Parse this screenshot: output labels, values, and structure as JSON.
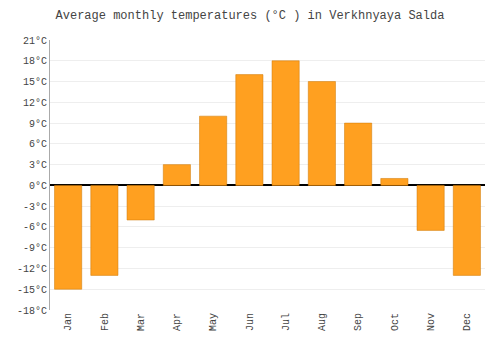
{
  "chart_data": {
    "type": "bar",
    "title": "Average monthly temperatures (°C ) in Verkhnyaya Salda",
    "categories": [
      "Jan",
      "Feb",
      "Mar",
      "Apr",
      "May",
      "Jun",
      "Jul",
      "Aug",
      "Sep",
      "Oct",
      "Nov",
      "Dec"
    ],
    "values": [
      -15,
      -13,
      -5,
      3,
      10,
      16,
      18,
      15,
      9,
      1,
      -6.5,
      -13
    ],
    "color": "#FFA020",
    "ylim": [
      -18,
      21
    ],
    "yticks": [
      {
        "value": -18,
        "label": "-18°C"
      },
      {
        "value": -15,
        "label": "-15°C"
      },
      {
        "value": -12,
        "label": "-12°C"
      },
      {
        "value": -9,
        "label": "-9°C"
      },
      {
        "value": -6,
        "label": "-6°C"
      },
      {
        "value": -3,
        "label": "-3°C"
      },
      {
        "value": 0,
        "label": "0°C"
      },
      {
        "value": 3,
        "label": "3°C"
      },
      {
        "value": 6,
        "label": "6°C"
      },
      {
        "value": 9,
        "label": "9°C"
      },
      {
        "value": 12,
        "label": "12°C"
      },
      {
        "value": 15,
        "label": "15°C"
      },
      {
        "value": 18,
        "label": "18°C"
      },
      {
        "value": 21,
        "label": "21°C"
      }
    ],
    "grid": true
  }
}
